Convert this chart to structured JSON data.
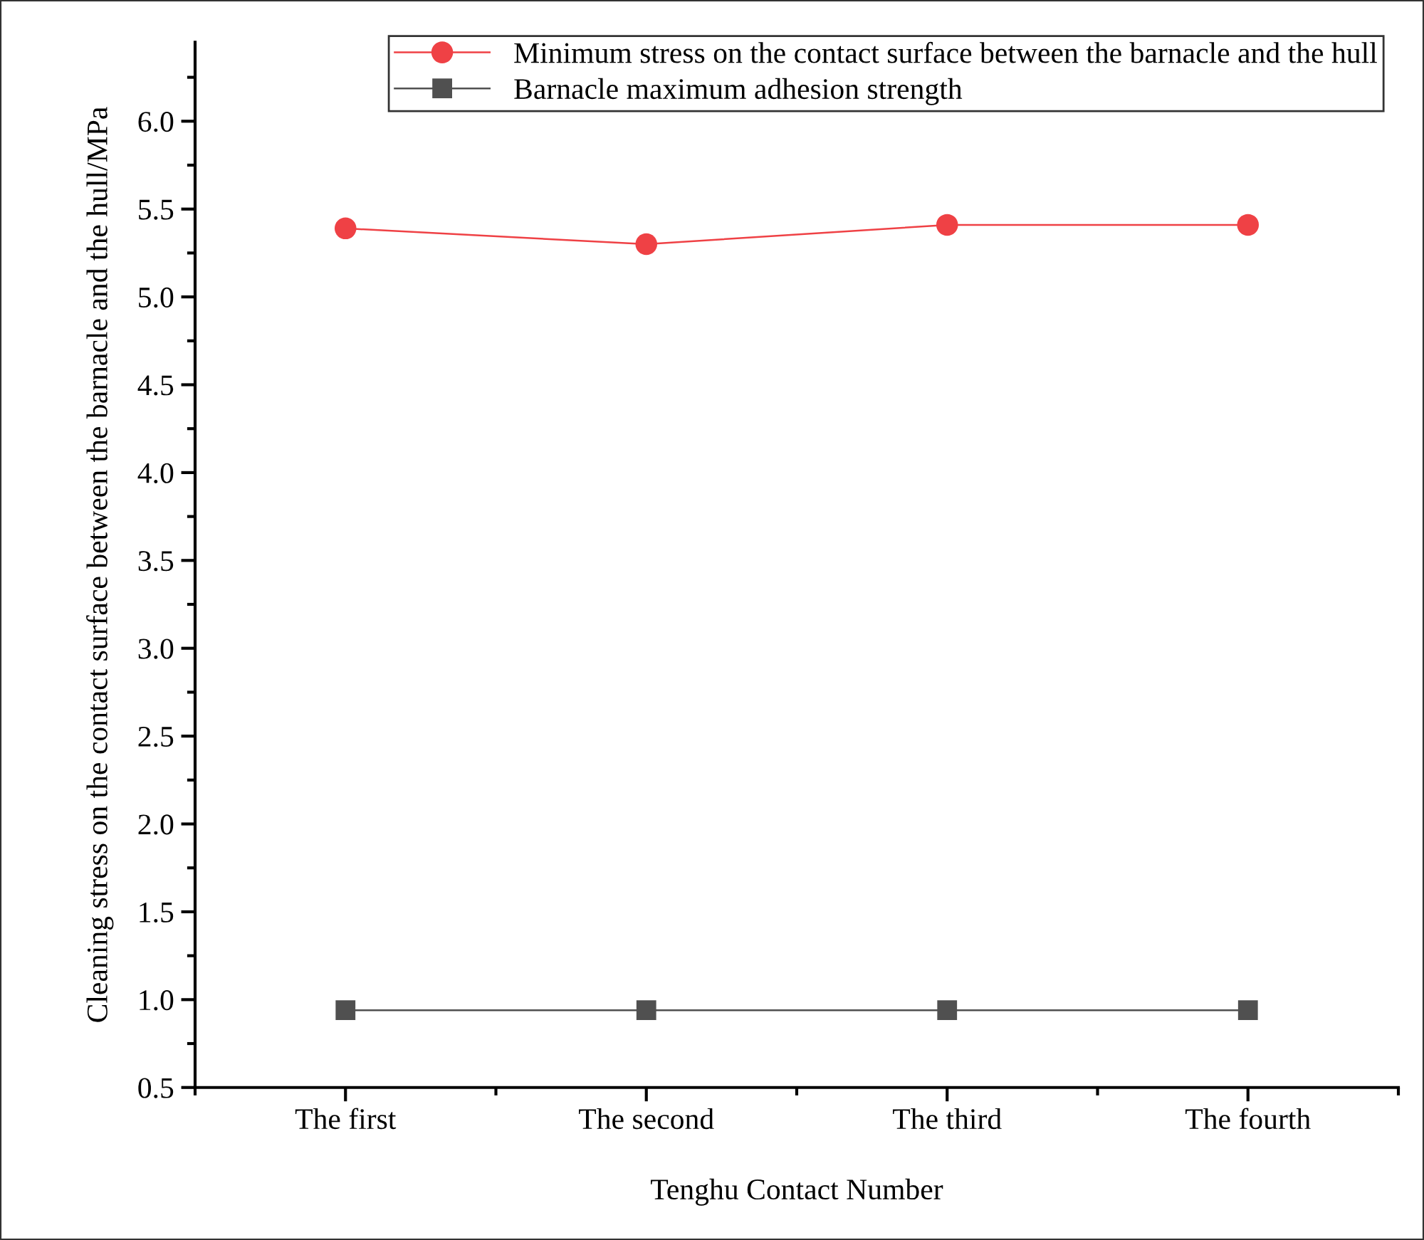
{
  "chart_data": {
    "type": "line",
    "xlabel": "Tenghu Contact Number",
    "ylabel": "Cleaning stress on the contact surface between the barnacle and the hull/MPa",
    "categories": [
      "The first",
      "The second",
      "The third",
      "The fourth"
    ],
    "series": [
      {
        "name": "Minimum stress on the contact surface between the barnacle and the hull",
        "color": "#ef4145",
        "values": [
          5.39,
          5.3,
          5.41,
          5.41
        ],
        "marker": "circle"
      },
      {
        "name": "Barnacle maximum adhesion strength",
        "color": "#505050",
        "values": [
          0.94,
          0.94,
          0.94,
          0.94
        ],
        "marker": "square"
      }
    ],
    "ylim": [
      0.5,
      6.45
    ],
    "yticks": [
      0.5,
      {
        "value": 1,
        "label": "1.0"
      },
      1.5,
      {
        "value": 2,
        "label": "2.0"
      },
      2.5,
      {
        "value": 3,
        "label": "3.0"
      },
      3.5,
      {
        "value": 4,
        "label": "4.0"
      },
      4.5,
      {
        "value": 5,
        "label": "5.0"
      },
      5.5,
      {
        "value": 6,
        "label": "6.0"
      }
    ],
    "grid": false,
    "legend": "top right"
  }
}
